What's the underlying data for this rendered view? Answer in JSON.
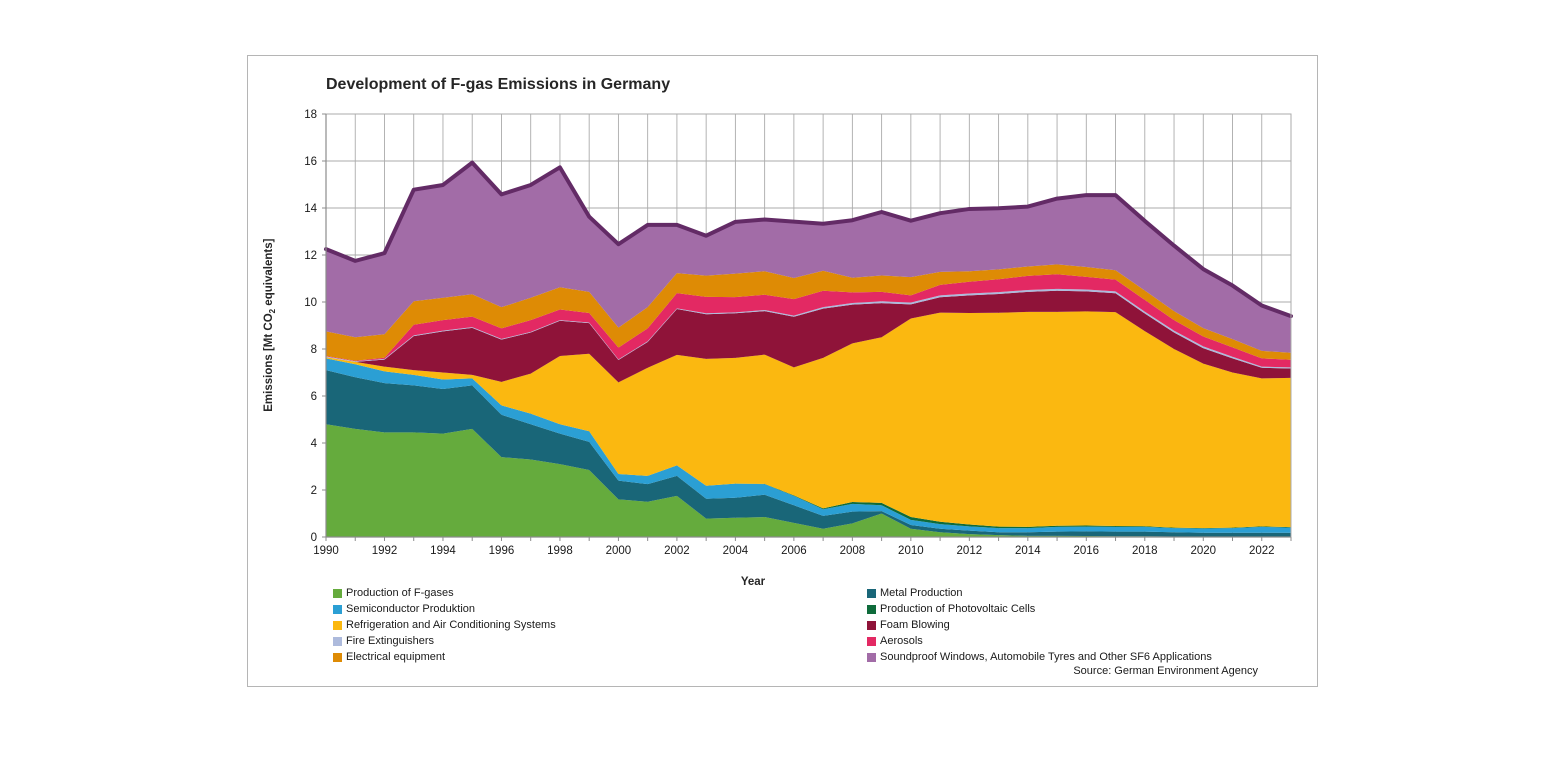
{
  "chart_data": {
    "type": "area",
    "stacked": true,
    "title": "Development of F-gas Emissions in Germany",
    "xlabel": "Year",
    "ylabel": "Emissions [Mt CO2 equivalents]",
    "ylabel_parts": {
      "pre": "Emissions [Mt CO",
      "sub": "2",
      "post": " equivalents]"
    },
    "source": "Source: German Environment Agency",
    "ylim": [
      0,
      18
    ],
    "ytick_step": 2,
    "grid": true,
    "x": [
      1990,
      1991,
      1992,
      1993,
      1994,
      1995,
      1996,
      1997,
      1998,
      1999,
      2000,
      2001,
      2002,
      2003,
      2004,
      2005,
      2006,
      2007,
      2008,
      2009,
      2010,
      2011,
      2012,
      2013,
      2014,
      2015,
      2016,
      2017,
      2018,
      2019,
      2020,
      2021,
      2022,
      2023
    ],
    "xtick_labels": [
      "1990",
      "1992",
      "1994",
      "1996",
      "1998",
      "2000",
      "2002",
      "2004",
      "2006",
      "2008",
      "2010",
      "2012",
      "2014",
      "2016",
      "2018",
      "2020",
      "2022"
    ],
    "top_border_color": "#632B66",
    "grid_color": "#ABABAB",
    "axis_color": "#8C8C8C",
    "tick_text_color": "#1a1a1a",
    "legend_columns": [
      [
        0,
        2,
        4,
        6,
        8
      ],
      [
        1,
        3,
        5,
        7,
        9
      ]
    ],
    "series": [
      {
        "key": "production-of-f-gases",
        "name": "Production of F-gases",
        "color": "#65AB3D",
        "values": [
          4.8,
          4.6,
          4.45,
          4.45,
          4.4,
          4.6,
          3.4,
          3.3,
          3.1,
          2.85,
          1.6,
          1.5,
          1.75,
          0.78,
          0.82,
          0.85,
          0.6,
          0.35,
          0.58,
          1.0,
          0.35,
          0.2,
          0.12,
          0.08,
          0.05,
          0.05,
          0.04,
          0.03,
          0.03,
          0.02,
          0.02,
          0.02,
          0.02,
          0.02
        ]
      },
      {
        "key": "metal-production",
        "name": "Metal Production",
        "color": "#196678",
        "values": [
          2.3,
          2.2,
          2.1,
          2.0,
          1.9,
          1.85,
          1.8,
          1.5,
          1.3,
          1.2,
          0.8,
          0.75,
          0.85,
          0.85,
          0.85,
          0.95,
          0.75,
          0.55,
          0.5,
          0.1,
          0.16,
          0.15,
          0.15,
          0.12,
          0.15,
          0.18,
          0.2,
          0.2,
          0.2,
          0.18,
          0.16,
          0.16,
          0.16,
          0.16
        ]
      },
      {
        "key": "semiconductor-produktion",
        "name": "Semiconductor Produktion",
        "color": "#2B9FD4",
        "values": [
          0.5,
          0.55,
          0.5,
          0.45,
          0.4,
          0.3,
          0.4,
          0.45,
          0.4,
          0.45,
          0.28,
          0.35,
          0.45,
          0.55,
          0.6,
          0.45,
          0.4,
          0.28,
          0.33,
          0.25,
          0.22,
          0.2,
          0.18,
          0.18,
          0.18,
          0.2,
          0.2,
          0.2,
          0.2,
          0.18,
          0.18,
          0.2,
          0.25,
          0.22
        ]
      },
      {
        "key": "production-of-photovoltaic-cells",
        "name": "Production of Photovoltaic Cells",
        "color": "#0E6B3B",
        "values": [
          0,
          0,
          0,
          0,
          0,
          0,
          0,
          0,
          0,
          0,
          0,
          0,
          0,
          0,
          0,
          0.01,
          0.02,
          0.04,
          0.08,
          0.1,
          0.12,
          0.1,
          0.08,
          0.06,
          0.05,
          0.05,
          0.05,
          0.04,
          0.03,
          0.02,
          0.02,
          0.02,
          0.02,
          0.02
        ]
      },
      {
        "key": "refrigeration-and-air-conditioning-systems",
        "name": "Refrigeration and Air Conditioning Systems",
        "color": "#FBB810",
        "values": [
          0.05,
          0.1,
          0.2,
          0.2,
          0.3,
          0.15,
          1.0,
          1.7,
          2.9,
          3.3,
          3.9,
          4.6,
          4.7,
          5.4,
          5.35,
          5.5,
          5.45,
          6.4,
          6.75,
          7.05,
          8.45,
          8.9,
          9.0,
          9.1,
          9.15,
          9.1,
          9.11,
          9.1,
          8.3,
          7.6,
          7.0,
          6.6,
          6.3,
          6.35
        ]
      },
      {
        "key": "foam-blowing",
        "name": "Foam Blowing",
        "color": "#8F1339",
        "values": [
          0.0,
          0.0,
          0.3,
          1.45,
          1.75,
          2.0,
          1.8,
          1.75,
          1.5,
          1.3,
          0.95,
          1.1,
          1.95,
          1.9,
          1.9,
          1.85,
          2.15,
          2.1,
          1.65,
          1.45,
          0.6,
          0.65,
          0.75,
          0.8,
          0.85,
          0.9,
          0.85,
          0.8,
          0.75,
          0.7,
          0.65,
          0.6,
          0.45,
          0.4
        ]
      },
      {
        "key": "fire-extinguishers",
        "name": "Fire Extinguishers",
        "color": "#ADBADC",
        "values": [
          0.03,
          0.03,
          0.03,
          0.03,
          0.03,
          0.03,
          0.03,
          0.03,
          0.03,
          0.03,
          0.03,
          0.03,
          0.03,
          0.04,
          0.04,
          0.05,
          0.05,
          0.06,
          0.07,
          0.08,
          0.08,
          0.08,
          0.08,
          0.08,
          0.08,
          0.08,
          0.08,
          0.08,
          0.08,
          0.08,
          0.08,
          0.07,
          0.05,
          0.05
        ]
      },
      {
        "key": "aerosols",
        "name": "Aerosols",
        "color": "#E32963",
        "values": [
          0.02,
          0.02,
          0.05,
          0.45,
          0.45,
          0.45,
          0.45,
          0.5,
          0.45,
          0.4,
          0.5,
          0.55,
          0.65,
          0.7,
          0.65,
          0.65,
          0.7,
          0.7,
          0.45,
          0.4,
          0.3,
          0.45,
          0.5,
          0.55,
          0.6,
          0.62,
          0.54,
          0.5,
          0.5,
          0.45,
          0.42,
          0.4,
          0.35,
          0.32
        ]
      },
      {
        "key": "electrical-equipment",
        "name": "Electrical equipment",
        "color": "#DE8B05",
        "values": [
          1.05,
          1.0,
          1.0,
          1.0,
          0.95,
          0.95,
          0.9,
          0.95,
          0.95,
          0.9,
          0.85,
          0.9,
          0.85,
          0.9,
          1.0,
          1.0,
          0.9,
          0.85,
          0.62,
          0.7,
          0.78,
          0.55,
          0.45,
          0.42,
          0.4,
          0.42,
          0.42,
          0.4,
          0.4,
          0.38,
          0.36,
          0.35,
          0.32,
          0.3
        ]
      },
      {
        "key": "soundproof-windows-automobile-tyres-and-other-sf6-applications",
        "name": "Soundproof Windows, Automobile Tyres and Other SF6 Applications",
        "color": "#A26CA7",
        "values": [
          3.5,
          3.25,
          3.45,
          4.75,
          4.8,
          5.6,
          4.8,
          4.8,
          5.1,
          3.2,
          3.55,
          3.5,
          2.05,
          1.7,
          2.2,
          2.2,
          2.4,
          2.0,
          2.45,
          2.7,
          2.4,
          2.5,
          2.65,
          2.6,
          2.55,
          2.8,
          3.06,
          3.2,
          2.96,
          2.79,
          2.51,
          2.28,
          1.93,
          1.56
        ]
      }
    ]
  }
}
